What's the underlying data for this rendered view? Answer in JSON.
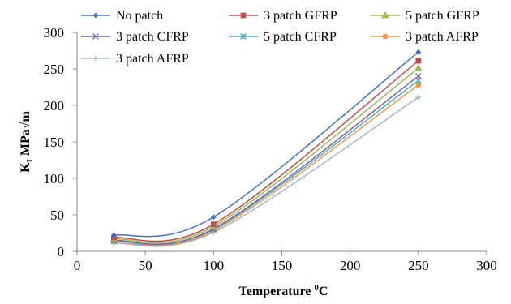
{
  "chart_data": {
    "type": "scatter",
    "title": "",
    "xlabel": {
      "main": "Temperature ",
      "sup": "0",
      "unit": "C"
    },
    "ylabel": {
      "k": "K",
      "sub": "I",
      "unit": " MPa√m"
    },
    "xlim": [
      0,
      300
    ],
    "ylim": [
      0,
      300
    ],
    "xticks": [
      0,
      50,
      100,
      150,
      200,
      250,
      300
    ],
    "yticks": [
      0,
      50,
      100,
      150,
      200,
      250,
      300
    ],
    "grid": false,
    "legend_position": "top",
    "smooth_lines": true,
    "x": [
      27,
      100,
      250
    ],
    "series": [
      {
        "name": "No patch",
        "values": [
          22,
          47,
          273
        ],
        "color": "#4472C4",
        "marker": "diamond"
      },
      {
        "name": "3 patch GFRP",
        "values": [
          19,
          37,
          261
        ],
        "color": "#C0504D",
        "marker": "square"
      },
      {
        "name": "5 patch GFRP",
        "values": [
          17,
          34,
          251
        ],
        "color": "#9BBB59",
        "marker": "triangle"
      },
      {
        "name": "3 patch CFRP",
        "values": [
          15,
          31,
          240
        ],
        "color": "#8064A2",
        "marker": "x"
      },
      {
        "name": "5 patch CFRP",
        "values": [
          14,
          30,
          234
        ],
        "color": "#4BACC6",
        "marker": "asterisk"
      },
      {
        "name": "3 patch AFRP",
        "values": [
          13,
          28,
          228
        ],
        "color": "#F79646",
        "marker": "circle"
      },
      {
        "name": "3 patch AFRP",
        "values": [
          11,
          26,
          211
        ],
        "color": "#A5B6D9",
        "marker": "plus"
      }
    ]
  }
}
